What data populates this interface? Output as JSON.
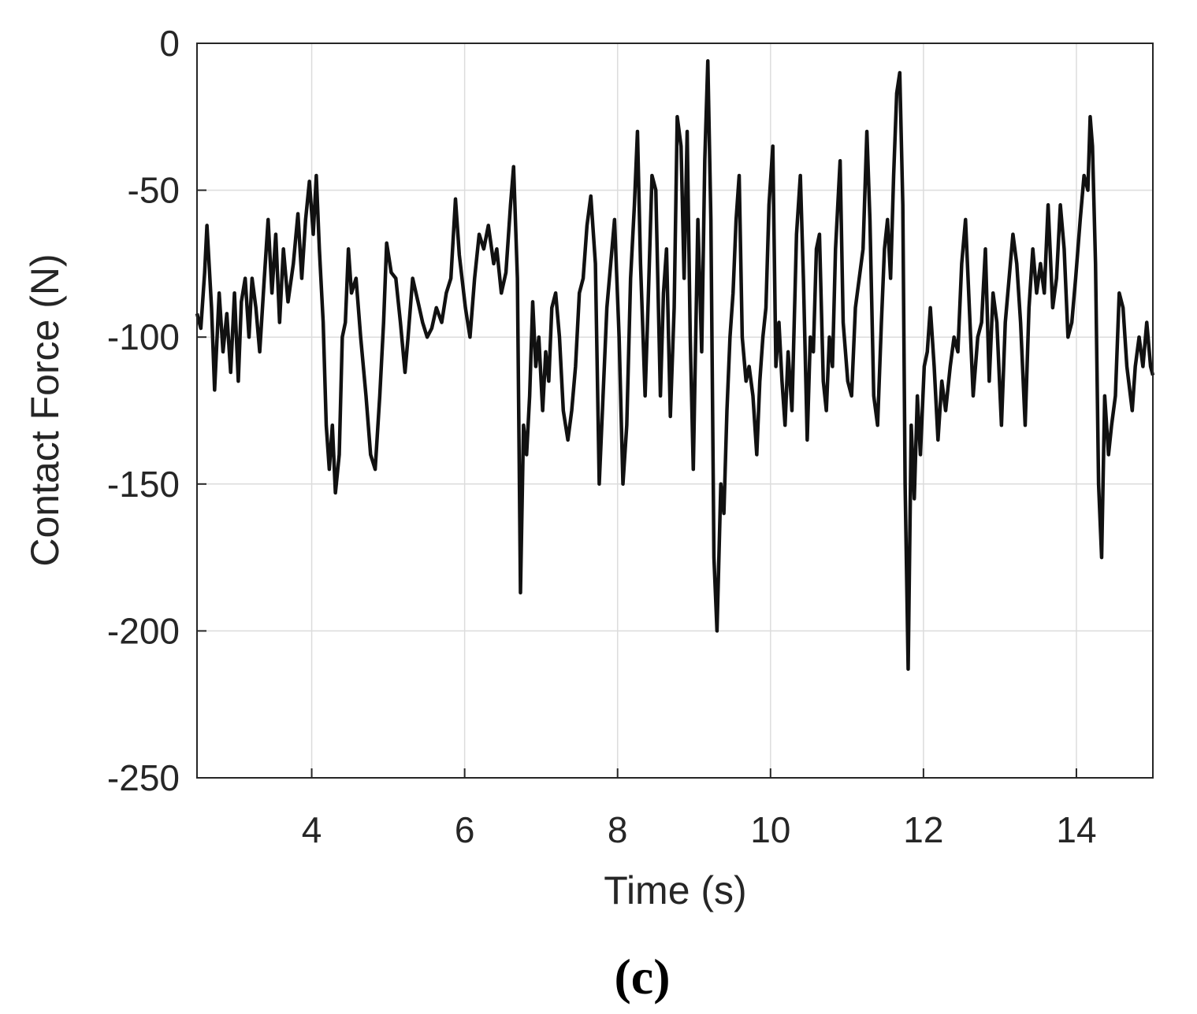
{
  "chart_data": {
    "type": "line",
    "xlabel": "Time (s)",
    "ylabel": "Contact Force (N)",
    "caption": "(c)",
    "xlim": [
      2.5,
      15
    ],
    "xticks": [
      4,
      6,
      8,
      10,
      12,
      14
    ],
    "ylim": [
      -250,
      0
    ],
    "yticks": [
      -250,
      -200,
      -150,
      -100,
      -50,
      0
    ],
    "grid": true,
    "x": [
      2.5,
      2.55,
      2.6,
      2.63,
      2.69,
      2.73,
      2.79,
      2.84,
      2.89,
      2.94,
      2.99,
      3.04,
      3.08,
      3.13,
      3.18,
      3.22,
      3.27,
      3.32,
      3.38,
      3.43,
      3.48,
      3.53,
      3.58,
      3.63,
      3.69,
      3.76,
      3.82,
      3.87,
      3.92,
      3.97,
      4.02,
      4.06,
      4.1,
      4.15,
      4.19,
      4.23,
      4.27,
      4.31,
      4.36,
      4.4,
      4.44,
      4.48,
      4.52,
      4.58,
      4.64,
      4.71,
      4.77,
      4.83,
      4.89,
      4.94,
      4.98,
      5.04,
      5.1,
      5.16,
      5.22,
      5.26,
      5.32,
      5.39,
      5.45,
      5.51,
      5.57,
      5.63,
      5.7,
      5.76,
      5.82,
      5.88,
      5.93,
      6.01,
      6.07,
      6.13,
      6.19,
      6.25,
      6.31,
      6.38,
      6.42,
      6.48,
      6.54,
      6.6,
      6.64,
      6.69,
      6.73,
      6.77,
      6.81,
      6.85,
      6.89,
      6.93,
      6.97,
      7.02,
      7.06,
      7.1,
      7.14,
      7.19,
      7.24,
      7.29,
      7.35,
      7.4,
      7.45,
      7.5,
      7.55,
      7.6,
      7.65,
      7.71,
      7.76,
      7.81,
      7.86,
      7.91,
      7.96,
      8.02,
      8.07,
      8.12,
      8.17,
      8.22,
      8.26,
      8.3,
      8.36,
      8.4,
      8.45,
      8.5,
      8.56,
      8.6,
      8.64,
      8.69,
      8.74,
      8.78,
      8.83,
      8.87,
      8.91,
      8.95,
      8.99,
      9.05,
      9.1,
      9.14,
      9.18,
      9.22,
      9.26,
      9.3,
      9.35,
      9.39,
      9.43,
      9.47,
      9.51,
      9.55,
      9.59,
      9.63,
      9.68,
      9.72,
      9.77,
      9.82,
      9.86,
      9.9,
      9.94,
      9.98,
      10.03,
      10.07,
      10.11,
      10.15,
      10.19,
      10.23,
      10.28,
      10.34,
      10.39,
      10.43,
      10.48,
      10.52,
      10.56,
      10.6,
      10.64,
      10.69,
      10.73,
      10.77,
      10.81,
      10.85,
      10.91,
      10.95,
      11.01,
      11.06,
      11.11,
      11.16,
      11.21,
      11.26,
      11.3,
      11.35,
      11.4,
      11.45,
      11.49,
      11.53,
      11.57,
      11.61,
      11.65,
      11.69,
      11.73,
      11.76,
      11.8,
      11.84,
      11.88,
      11.92,
      11.96,
      12.01,
      12.05,
      12.09,
      12.14,
      12.19,
      12.24,
      12.29,
      12.35,
      12.4,
      12.45,
      12.5,
      12.55,
      12.6,
      12.65,
      12.71,
      12.76,
      12.81,
      12.86,
      12.91,
      12.96,
      13.02,
      13.07,
      13.12,
      13.17,
      13.22,
      13.27,
      13.33,
      13.38,
      13.43,
      13.48,
      13.53,
      13.58,
      13.63,
      13.69,
      13.74,
      13.79,
      13.84,
      13.89,
      13.94,
      13.99,
      14.05,
      14.1,
      14.15,
      14.18,
      14.21,
      14.25,
      14.29,
      14.33,
      14.37,
      14.42,
      14.46,
      14.51,
      14.56,
      14.61,
      14.66,
      14.73,
      14.77,
      14.82,
      14.87,
      14.92,
      14.97,
      15.0
    ],
    "series": [
      {
        "color": "#111111",
        "values": [
          -92,
          -97,
          -78,
          -62,
          -90,
          -118,
          -85,
          -105,
          -92,
          -112,
          -85,
          -115,
          -88,
          -80,
          -100,
          -80,
          -90,
          -105,
          -80,
          -60,
          -85,
          -65,
          -95,
          -70,
          -88,
          -75,
          -58,
          -80,
          -60,
          -47,
          -65,
          -45,
          -70,
          -95,
          -130,
          -145,
          -130,
          -153,
          -140,
          -100,
          -95,
          -70,
          -85,
          -80,
          -100,
          -120,
          -140,
          -145,
          -120,
          -95,
          -68,
          -78,
          -80,
          -95,
          -112,
          -100,
          -80,
          -88,
          -95,
          -100,
          -97,
          -90,
          -95,
          -85,
          -80,
          -53,
          -72,
          -90,
          -100,
          -80,
          -65,
          -70,
          -62,
          -75,
          -70,
          -85,
          -78,
          -55,
          -42,
          -80,
          -187,
          -130,
          -140,
          -120,
          -88,
          -110,
          -100,
          -125,
          -105,
          -115,
          -90,
          -85,
          -100,
          -125,
          -135,
          -125,
          -110,
          -85,
          -80,
          -62,
          -52,
          -75,
          -150,
          -120,
          -90,
          -75,
          -60,
          -100,
          -150,
          -130,
          -80,
          -55,
          -30,
          -75,
          -120,
          -88,
          -45,
          -50,
          -120,
          -85,
          -70,
          -127,
          -90,
          -25,
          -35,
          -80,
          -30,
          -100,
          -145,
          -60,
          -105,
          -40,
          -6,
          -60,
          -175,
          -200,
          -150,
          -160,
          -125,
          -100,
          -85,
          -60,
          -45,
          -100,
          -115,
          -110,
          -120,
          -140,
          -115,
          -100,
          -90,
          -55,
          -35,
          -110,
          -95,
          -115,
          -130,
          -105,
          -125,
          -65,
          -45,
          -80,
          -135,
          -100,
          -105,
          -70,
          -65,
          -115,
          -125,
          -100,
          -110,
          -70,
          -40,
          -95,
          -115,
          -120,
          -90,
          -80,
          -70,
          -30,
          -60,
          -120,
          -130,
          -95,
          -70,
          -60,
          -80,
          -45,
          -17,
          -10,
          -55,
          -150,
          -213,
          -130,
          -155,
          -120,
          -140,
          -110,
          -105,
          -90,
          -110,
          -135,
          -115,
          -125,
          -110,
          -100,
          -105,
          -75,
          -60,
          -90,
          -120,
          -100,
          -95,
          -70,
          -115,
          -85,
          -95,
          -130,
          -95,
          -80,
          -65,
          -75,
          -95,
          -130,
          -90,
          -70,
          -85,
          -75,
          -85,
          -55,
          -90,
          -80,
          -55,
          -70,
          -100,
          -95,
          -80,
          -60,
          -45,
          -50,
          -25,
          -35,
          -75,
          -150,
          -175,
          -120,
          -140,
          -130,
          -120,
          -85,
          -90,
          -110,
          -125,
          -110,
          -100,
          -110,
          -95,
          -110,
          -113
        ]
      }
    ]
  }
}
